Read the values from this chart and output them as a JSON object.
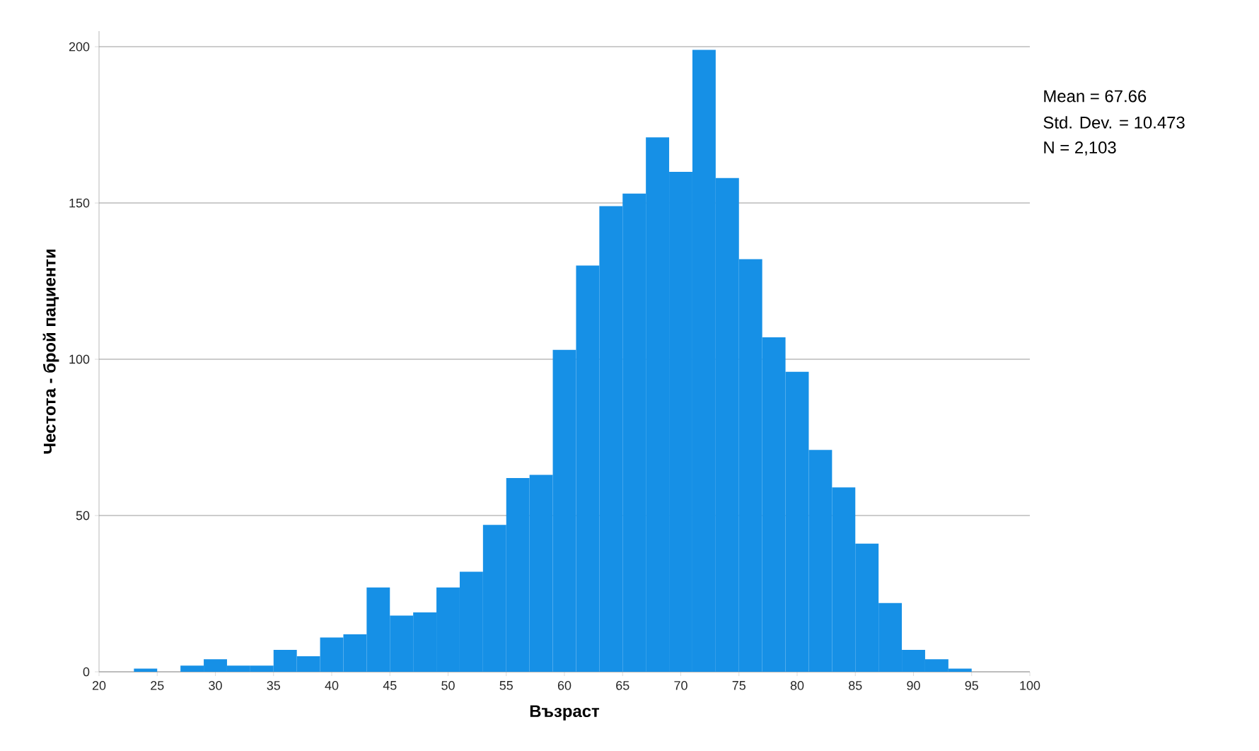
{
  "chart_data": {
    "type": "histogram",
    "xlabel": "Възраст",
    "ylabel": "Честота - брой пациенти",
    "bins": [
      23,
      25,
      27,
      29,
      31,
      33,
      35,
      37,
      39,
      41,
      43,
      45,
      47,
      49,
      51,
      53,
      55,
      57,
      59,
      61,
      63,
      65,
      67,
      69,
      71,
      73,
      75,
      77,
      79,
      81,
      83,
      85,
      87,
      89,
      91,
      93,
      95
    ],
    "values": [
      1,
      0,
      2,
      4,
      2,
      2,
      7,
      5,
      11,
      12,
      27,
      18,
      19,
      27,
      32,
      47,
      62,
      63,
      103,
      130,
      149,
      153,
      171,
      160,
      199,
      158,
      132,
      107,
      96,
      71,
      59,
      41,
      22,
      7,
      4,
      1
    ],
    "color": "#1690e6",
    "xlim": [
      20,
      100
    ],
    "xticks": [
      20,
      25,
      30,
      35,
      40,
      45,
      50,
      55,
      60,
      65,
      70,
      75,
      80,
      85,
      90,
      95,
      100
    ],
    "ylim": [
      0,
      205
    ],
    "yticks": [
      0,
      50,
      100,
      150,
      200
    ],
    "grid": "y",
    "annotations": [
      "Mean = 67.66",
      "Std. Dev. = 10.473",
      "N = 2,103"
    ]
  }
}
